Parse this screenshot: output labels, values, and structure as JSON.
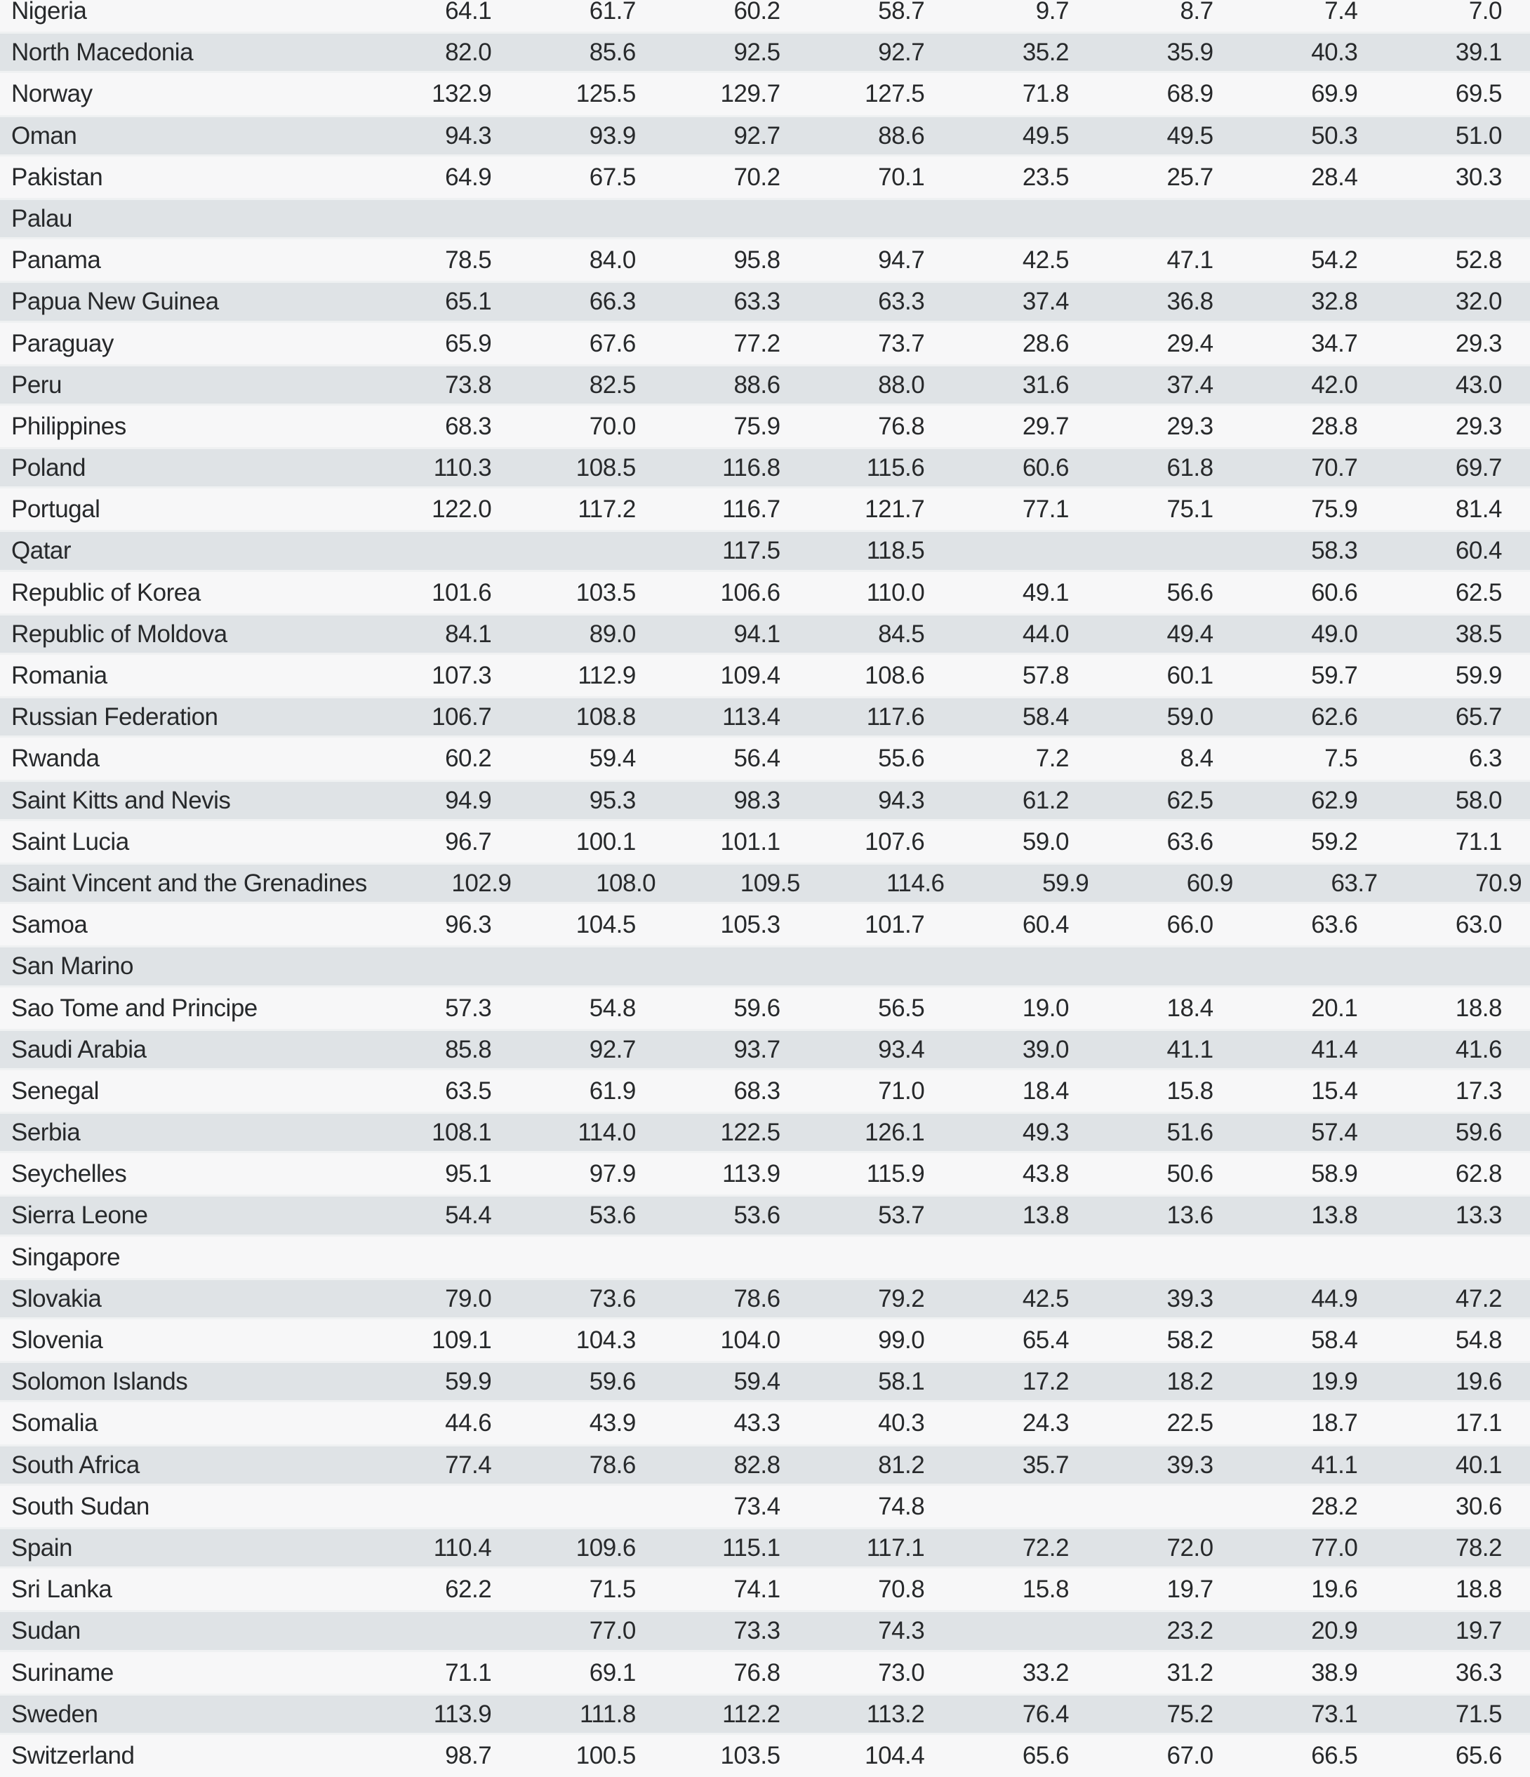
{
  "colors": {
    "stripe": "#dfe3e6",
    "stripe_edge": "#eff1f2",
    "row_base": "#f7f7f8",
    "text": "#27292b"
  },
  "table": {
    "rows": [
      {
        "country": "Nigeria",
        "values": [
          "64.1",
          "61.7",
          "60.2",
          "58.7",
          "9.7",
          "8.7",
          "7.4",
          "7.0"
        ]
      },
      {
        "country": "North Macedonia",
        "values": [
          "82.0",
          "85.6",
          "92.5",
          "92.7",
          "35.2",
          "35.9",
          "40.3",
          "39.1"
        ]
      },
      {
        "country": "Norway",
        "values": [
          "132.9",
          "125.5",
          "129.7",
          "127.5",
          "71.8",
          "68.9",
          "69.9",
          "69.5"
        ]
      },
      {
        "country": "Oman",
        "values": [
          "94.3",
          "93.9",
          "92.7",
          "88.6",
          "49.5",
          "49.5",
          "50.3",
          "51.0"
        ]
      },
      {
        "country": "Pakistan",
        "values": [
          "64.9",
          "67.5",
          "70.2",
          "70.1",
          "23.5",
          "25.7",
          "28.4",
          "30.3"
        ]
      },
      {
        "country": "Palau",
        "values": [
          "",
          "",
          "",
          "",
          "",
          "",
          "",
          ""
        ]
      },
      {
        "country": "Panama",
        "values": [
          "78.5",
          "84.0",
          "95.8",
          "94.7",
          "42.5",
          "47.1",
          "54.2",
          "52.8"
        ]
      },
      {
        "country": "Papua New Guinea",
        "values": [
          "65.1",
          "66.3",
          "63.3",
          "63.3",
          "37.4",
          "36.8",
          "32.8",
          "32.0"
        ]
      },
      {
        "country": "Paraguay",
        "values": [
          "65.9",
          "67.6",
          "77.2",
          "73.7",
          "28.6",
          "29.4",
          "34.7",
          "29.3"
        ]
      },
      {
        "country": "Peru",
        "values": [
          "73.8",
          "82.5",
          "88.6",
          "88.0",
          "31.6",
          "37.4",
          "42.0",
          "43.0"
        ]
      },
      {
        "country": "Philippines",
        "values": [
          "68.3",
          "70.0",
          "75.9",
          "76.8",
          "29.7",
          "29.3",
          "28.8",
          "29.3"
        ]
      },
      {
        "country": "Poland",
        "values": [
          "110.3",
          "108.5",
          "116.8",
          "115.6",
          "60.6",
          "61.8",
          "70.7",
          "69.7"
        ]
      },
      {
        "country": "Portugal",
        "values": [
          "122.0",
          "117.2",
          "116.7",
          "121.7",
          "77.1",
          "75.1",
          "75.9",
          "81.4"
        ]
      },
      {
        "country": "Qatar",
        "values": [
          "",
          "",
          "117.5",
          "118.5",
          "",
          "",
          "58.3",
          "60.4"
        ]
      },
      {
        "country": "Republic of Korea",
        "values": [
          "101.6",
          "103.5",
          "106.6",
          "110.0",
          "49.1",
          "56.6",
          "60.6",
          "62.5"
        ]
      },
      {
        "country": "Republic of Moldova",
        "values": [
          "84.1",
          "89.0",
          "94.1",
          "84.5",
          "44.0",
          "49.4",
          "49.0",
          "38.5"
        ]
      },
      {
        "country": "Romania",
        "values": [
          "107.3",
          "112.9",
          "109.4",
          "108.6",
          "57.8",
          "60.1",
          "59.7",
          "59.9"
        ]
      },
      {
        "country": "Russian Federation",
        "values": [
          "106.7",
          "108.8",
          "113.4",
          "117.6",
          "58.4",
          "59.0",
          "62.6",
          "65.7"
        ]
      },
      {
        "country": "Rwanda",
        "values": [
          "60.2",
          "59.4",
          "56.4",
          "55.6",
          "7.2",
          "8.4",
          "7.5",
          "6.3"
        ]
      },
      {
        "country": "Saint Kitts and Nevis",
        "values": [
          "94.9",
          "95.3",
          "98.3",
          "94.3",
          "61.2",
          "62.5",
          "62.9",
          "58.0"
        ]
      },
      {
        "country": "Saint Lucia",
        "values": [
          "96.7",
          "100.1",
          "101.1",
          "107.6",
          "59.0",
          "63.6",
          "59.2",
          "71.1"
        ]
      },
      {
        "country": "Saint Vincent and the Grenadines",
        "values": [
          "102.9",
          "108.0",
          "109.5",
          "114.6",
          "59.9",
          "60.9",
          "63.7",
          "70.9"
        ]
      },
      {
        "country": "Samoa",
        "values": [
          "96.3",
          "104.5",
          "105.3",
          "101.7",
          "60.4",
          "66.0",
          "63.6",
          "63.0"
        ]
      },
      {
        "country": "San Marino",
        "values": [
          "",
          "",
          "",
          "",
          "",
          "",
          "",
          ""
        ]
      },
      {
        "country": "Sao Tome and Principe",
        "values": [
          "57.3",
          "54.8",
          "59.6",
          "56.5",
          "19.0",
          "18.4",
          "20.1",
          "18.8"
        ]
      },
      {
        "country": "Saudi Arabia",
        "values": [
          "85.8",
          "92.7",
          "93.7",
          "93.4",
          "39.0",
          "41.1",
          "41.4",
          "41.6"
        ]
      },
      {
        "country": "Senegal",
        "values": [
          "63.5",
          "61.9",
          "68.3",
          "71.0",
          "18.4",
          "15.8",
          "15.4",
          "17.3"
        ]
      },
      {
        "country": "Serbia",
        "values": [
          "108.1",
          "114.0",
          "122.5",
          "126.1",
          "49.3",
          "51.6",
          "57.4",
          "59.6"
        ]
      },
      {
        "country": "Seychelles",
        "values": [
          "95.1",
          "97.9",
          "113.9",
          "115.9",
          "43.8",
          "50.6",
          "58.9",
          "62.8"
        ]
      },
      {
        "country": "Sierra Leone",
        "values": [
          "54.4",
          "53.6",
          "53.6",
          "53.7",
          "13.8",
          "13.6",
          "13.8",
          "13.3"
        ]
      },
      {
        "country": "Singapore",
        "values": [
          "",
          "",
          "",
          "",
          "",
          "",
          "",
          ""
        ]
      },
      {
        "country": "Slovakia",
        "values": [
          "79.0",
          "73.6",
          "78.6",
          "79.2",
          "42.5",
          "39.3",
          "44.9",
          "47.2"
        ]
      },
      {
        "country": "Slovenia",
        "values": [
          "109.1",
          "104.3",
          "104.0",
          "99.0",
          "65.4",
          "58.2",
          "58.4",
          "54.8"
        ]
      },
      {
        "country": "Solomon Islands",
        "values": [
          "59.9",
          "59.6",
          "59.4",
          "58.1",
          "17.2",
          "18.2",
          "19.9",
          "19.6"
        ]
      },
      {
        "country": "Somalia",
        "values": [
          "44.6",
          "43.9",
          "43.3",
          "40.3",
          "24.3",
          "22.5",
          "18.7",
          "17.1"
        ]
      },
      {
        "country": "South Africa",
        "values": [
          "77.4",
          "78.6",
          "82.8",
          "81.2",
          "35.7",
          "39.3",
          "41.1",
          "40.1"
        ]
      },
      {
        "country": "South Sudan",
        "values": [
          "",
          "",
          "73.4",
          "74.8",
          "",
          "",
          "28.2",
          "30.6"
        ]
      },
      {
        "country": "Spain",
        "values": [
          "110.4",
          "109.6",
          "115.1",
          "117.1",
          "72.2",
          "72.0",
          "77.0",
          "78.2"
        ]
      },
      {
        "country": "Sri Lanka",
        "values": [
          "62.2",
          "71.5",
          "74.1",
          "70.8",
          "15.8",
          "19.7",
          "19.6",
          "18.8"
        ]
      },
      {
        "country": "Sudan",
        "values": [
          "",
          "77.0",
          "73.3",
          "74.3",
          "",
          "23.2",
          "20.9",
          "19.7"
        ]
      },
      {
        "country": "Suriname",
        "values": [
          "71.1",
          "69.1",
          "76.8",
          "73.0",
          "33.2",
          "31.2",
          "38.9",
          "36.3"
        ]
      },
      {
        "country": "Sweden",
        "values": [
          "113.9",
          "111.8",
          "112.2",
          "113.2",
          "76.4",
          "75.2",
          "73.1",
          "71.5"
        ]
      },
      {
        "country": "Switzerland",
        "values": [
          "98.7",
          "100.5",
          "103.5",
          "104.4",
          "65.6",
          "67.0",
          "66.5",
          "65.6"
        ]
      }
    ]
  }
}
